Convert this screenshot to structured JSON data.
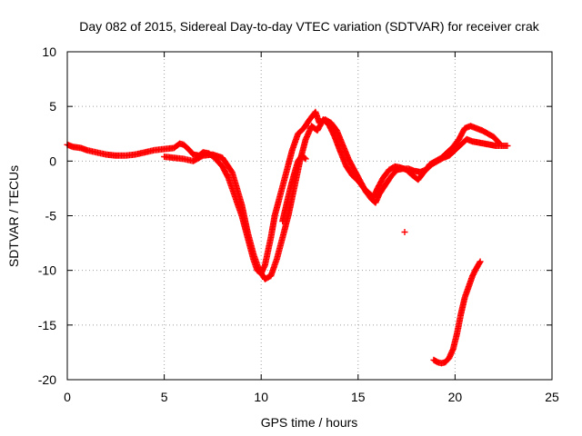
{
  "chart_data": {
    "type": "scatter",
    "title": "Day 082 of 2015, Sidereal Day-to-day VTEC variation (SDTVAR) for receiver crak",
    "xlabel": "GPS time / hours",
    "ylabel": "SDTVAR / TECUs",
    "xlim": [
      0,
      25
    ],
    "ylim": [
      -20,
      10
    ],
    "xticks": [
      0,
      5,
      10,
      15,
      20,
      25
    ],
    "yticks": [
      -20,
      -15,
      -10,
      -5,
      0,
      5,
      10
    ],
    "xtick_labels": [
      "0",
      "5",
      "10",
      "15",
      "20",
      "25"
    ],
    "ytick_labels": [
      "-20",
      "-15",
      "-10",
      "-5",
      "0",
      "5",
      "10"
    ],
    "grid": true,
    "marker": "+",
    "color": "#ff0000",
    "series": [
      {
        "name": "main-trace-a",
        "x": [
          0.0,
          0.3,
          0.7,
          1.0,
          1.5,
          2.0,
          2.5,
          3.0,
          3.5,
          4.0,
          4.5,
          5.0,
          5.5,
          5.8,
          6.0,
          6.3,
          6.5,
          6.8,
          7.0,
          7.3,
          7.6,
          8.0,
          8.3,
          8.6,
          9.0,
          9.3,
          9.6,
          9.8,
          10.0,
          10.2,
          10.5,
          10.7,
          11.0,
          11.3,
          11.6,
          11.9,
          12.2,
          12.5,
          12.8,
          13.0,
          13.3,
          13.6,
          13.9,
          14.2,
          14.5,
          14.8,
          15.1,
          15.4,
          15.7,
          15.9,
          16.1,
          16.4,
          16.7,
          17.0,
          17.3,
          17.6,
          17.9,
          18.2,
          18.5,
          18.8,
          19.1,
          19.4,
          19.7,
          20.0,
          20.3,
          20.6,
          20.9,
          21.2,
          21.5,
          21.8,
          22.1,
          22.4,
          22.7
        ],
        "y": [
          1.5,
          1.3,
          1.2,
          1.0,
          0.8,
          0.6,
          0.5,
          0.5,
          0.6,
          0.8,
          1.0,
          1.1,
          1.2,
          1.6,
          1.5,
          1.0,
          0.6,
          0.5,
          0.8,
          0.7,
          0.3,
          -0.5,
          -1.5,
          -3.0,
          -5.0,
          -7.0,
          -9.0,
          -10.0,
          -10.3,
          -9.5,
          -7.0,
          -5.0,
          -3.0,
          -1.0,
          1.0,
          2.5,
          3.0,
          3.8,
          4.5,
          3.5,
          3.8,
          3.5,
          2.8,
          1.5,
          0.2,
          -0.8,
          -1.8,
          -2.8,
          -3.5,
          -3.8,
          -3.0,
          -2.2,
          -1.4,
          -0.8,
          -0.7,
          -0.7,
          -0.9,
          -1.0,
          -0.8,
          -0.3,
          0.0,
          0.3,
          0.5,
          1.0,
          1.5,
          2.0,
          1.8,
          1.7,
          1.6,
          1.5,
          1.4,
          1.4,
          1.4
        ]
      },
      {
        "name": "main-trace-b",
        "x": [
          5.0,
          5.5,
          6.0,
          6.5,
          7.0,
          7.5,
          8.0,
          8.5,
          9.0,
          9.3,
          9.6,
          9.9,
          10.2,
          10.5,
          10.8,
          11.1,
          11.4,
          11.7,
          12.0,
          12.3,
          12.6,
          12.9,
          13.2,
          13.5,
          13.8,
          14.1,
          14.4,
          14.7,
          15.0,
          15.3,
          15.6,
          15.8,
          16.0,
          16.3,
          16.6,
          16.9,
          17.2,
          17.5,
          17.8,
          18.1,
          18.4,
          18.7,
          19.0,
          19.3,
          19.6,
          19.9,
          20.2,
          20.5,
          20.8,
          21.1,
          21.4,
          21.7,
          22.0,
          22.3
        ],
        "y": [
          0.4,
          0.3,
          0.2,
          0.0,
          0.5,
          0.6,
          0.3,
          -1.0,
          -4.0,
          -6.5,
          -8.5,
          -10.0,
          -10.8,
          -10.5,
          -9.0,
          -7.0,
          -5.0,
          -2.5,
          0.0,
          2.0,
          3.2,
          2.8,
          3.8,
          3.3,
          2.2,
          0.8,
          -0.5,
          -1.3,
          -1.8,
          -2.5,
          -3.0,
          -3.3,
          -2.5,
          -1.5,
          -0.8,
          -0.5,
          -0.6,
          -0.8,
          -1.3,
          -1.7,
          -1.0,
          -0.3,
          0.0,
          0.3,
          0.8,
          1.3,
          2.0,
          3.0,
          3.2,
          3.0,
          2.8,
          2.5,
          2.2,
          1.6
        ]
      },
      {
        "name": "secondary-branch",
        "x": [
          11.1,
          11.3,
          11.5,
          11.7,
          11.9,
          12.1,
          12.3
        ],
        "y": [
          -5.5,
          -4.0,
          -2.5,
          -1.2,
          0.0,
          0.5,
          0.2
        ]
      },
      {
        "name": "isolated-point",
        "x": [
          17.4
        ],
        "y": [
          -6.5
        ]
      },
      {
        "name": "low-trace",
        "x": [
          18.9,
          19.1,
          19.3,
          19.5,
          19.7,
          19.9,
          20.1,
          20.3,
          20.5,
          20.7,
          20.9,
          21.1,
          21.3
        ],
        "y": [
          -18.2,
          -18.4,
          -18.5,
          -18.4,
          -18.0,
          -17.2,
          -15.8,
          -14.0,
          -12.5,
          -11.5,
          -10.5,
          -9.8,
          -9.2
        ]
      }
    ]
  }
}
